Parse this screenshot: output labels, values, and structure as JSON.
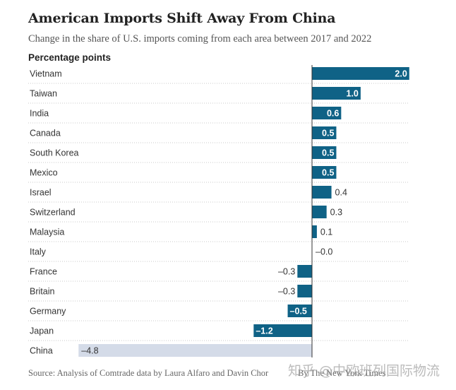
{
  "title": "American Imports Shift Away From China",
  "subtitle": "Change in the share of U.S. imports coming from each area between 2017 and 2022",
  "unit_label": "Percentage points",
  "source": "Source: Analysis of Comtrade data by Laura Alfaro and Davin Chor",
  "credit": "By The New York Times",
  "watermark": "知乎 @中欧班列国际物流",
  "colors": {
    "bar": "#0f6286",
    "china_bar": "#d4dbe8",
    "inside_label": "#ffffff",
    "outside_label": "#333333"
  },
  "chart_data": {
    "type": "bar",
    "orientation": "horizontal",
    "title": "American Imports Shift Away From China",
    "xlabel": "Percentage points",
    "ylabel": "",
    "xlim": [
      -4.8,
      2.0
    ],
    "grid": false,
    "categories": [
      "Vietnam",
      "Taiwan",
      "India",
      "Canada",
      "South Korea",
      "Mexico",
      "Israel",
      "Switzerland",
      "Malaysia",
      "Italy",
      "France",
      "Britain",
      "Germany",
      "Japan",
      "China"
    ],
    "values": [
      2.0,
      1.0,
      0.6,
      0.5,
      0.5,
      0.5,
      0.4,
      0.3,
      0.1,
      -0.0,
      -0.3,
      -0.3,
      -0.5,
      -1.2,
      -4.8
    ],
    "labels": [
      "2.0",
      "1.0",
      "0.6",
      "0.5",
      "0.5",
      "0.5",
      "0.4",
      "0.3",
      "0.1",
      "–0.0",
      "–0.3",
      "–0.3",
      "–0.5",
      "–1.2",
      "–4.8"
    ],
    "highlight": "China"
  }
}
